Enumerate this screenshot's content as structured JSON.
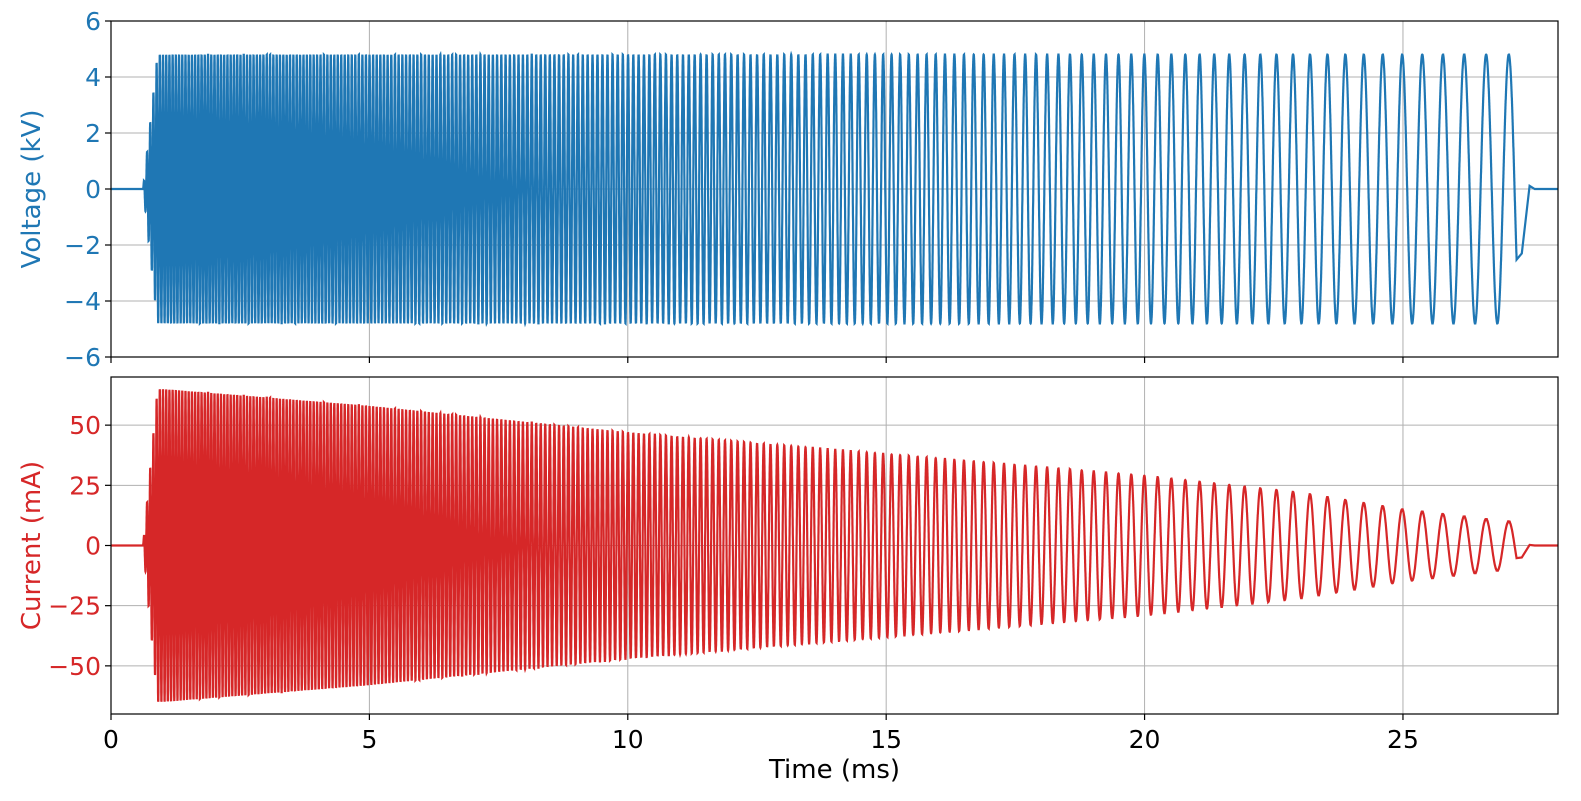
{
  "chart_data": [
    {
      "type": "line",
      "panel": "top",
      "ylabel": "Voltage (kV)",
      "xlabel": "",
      "xlim": [
        0,
        28
      ],
      "ylim": [
        -6,
        6
      ],
      "xticks": [
        0,
        5,
        10,
        15,
        20,
        25
      ],
      "yticks": [
        -6,
        -4,
        -2,
        0,
        2,
        4,
        6
      ],
      "ytick_labels": [
        "−6",
        "−4",
        "−2",
        "0",
        "2",
        "4",
        "6"
      ],
      "grid": true,
      "color": "#1f77b4",
      "series": [
        {
          "t_start_ms": 0.62,
          "t_end_ms": 27.2,
          "t_peak_reached_ms": 0.9,
          "amplitude_kV": 4.8,
          "period_at_start_ms": 0.062,
          "period_at_end_ms": 0.45,
          "trailing_pulse_min_kV": -2.3,
          "baseline_kV": 0
        }
      ]
    },
    {
      "type": "line",
      "panel": "bottom",
      "ylabel": "Current (mA)",
      "xlabel": "Time (ms)",
      "xlim": [
        0,
        28
      ],
      "ylim": [
        -70,
        70
      ],
      "xticks": [
        0,
        5,
        10,
        15,
        20,
        25
      ],
      "xtick_labels": [
        "0",
        "5",
        "10",
        "15",
        "20",
        "25"
      ],
      "yticks": [
        -50,
        -25,
        0,
        25,
        50
      ],
      "ytick_labels": [
        "−50",
        "−25",
        "0",
        "25",
        "50"
      ],
      "grid": true,
      "color": "#d62728",
      "series": [
        {
          "t_start_ms": 0.62,
          "t_end_ms": 27.2,
          "t_peak_reached_ms": 0.9,
          "amplitude_mA_at": [
            [
              1.0,
              65
            ],
            [
              5,
              58
            ],
            [
              10,
              47
            ],
            [
              15,
              38
            ],
            [
              20,
              29
            ],
            [
              23,
              22
            ],
            [
              25,
              15
            ],
            [
              27,
              10
            ]
          ],
          "period_at_start_ms": 0.062,
          "period_at_end_ms": 0.45,
          "trailing_pulse_amplitude_mA": 5,
          "baseline_mA": 0
        }
      ]
    }
  ]
}
